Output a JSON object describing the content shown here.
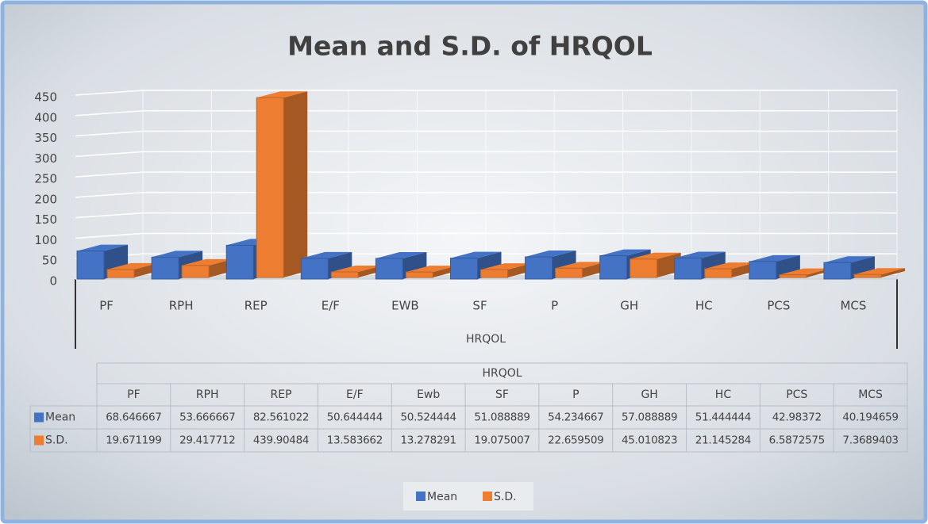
{
  "chart_data": {
    "type": "bar",
    "title": "Mean and S.D. of HRQOL",
    "xlabel": "HRQOL",
    "categories": [
      "PF",
      "RPH",
      "REP",
      "E/F",
      "EWB",
      "SF",
      "P",
      "GH",
      "HC",
      "PCS",
      "MCS"
    ],
    "series": [
      {
        "name": "Mean",
        "color": "#4472c4",
        "values": [
          68.646667,
          53.666667,
          82.561022,
          50.644444,
          50.524444,
          51.088889,
          54.234667,
          57.088889,
          51.444444,
          42.98372,
          40.194659
        ]
      },
      {
        "name": "S.D.",
        "color": "#ed7d31",
        "values": [
          19.671199,
          29.417712,
          439.90484,
          13.583662,
          13.278291,
          19.075007,
          22.659509,
          45.010823,
          21.145284,
          6.5872575,
          7.3689403
        ]
      }
    ],
    "ylim": [
      0,
      450
    ],
    "yticks": [
      0,
      50,
      100,
      150,
      200,
      250,
      300,
      350,
      400,
      450
    ],
    "grid": true,
    "data_table": {
      "title": "HRQOL",
      "columns": [
        "PF",
        "RPH",
        "REP",
        "E/F",
        "Ewb",
        "SF",
        "P",
        "GH",
        "HC",
        "PCS",
        "MCS"
      ]
    },
    "legend": "bottom"
  }
}
